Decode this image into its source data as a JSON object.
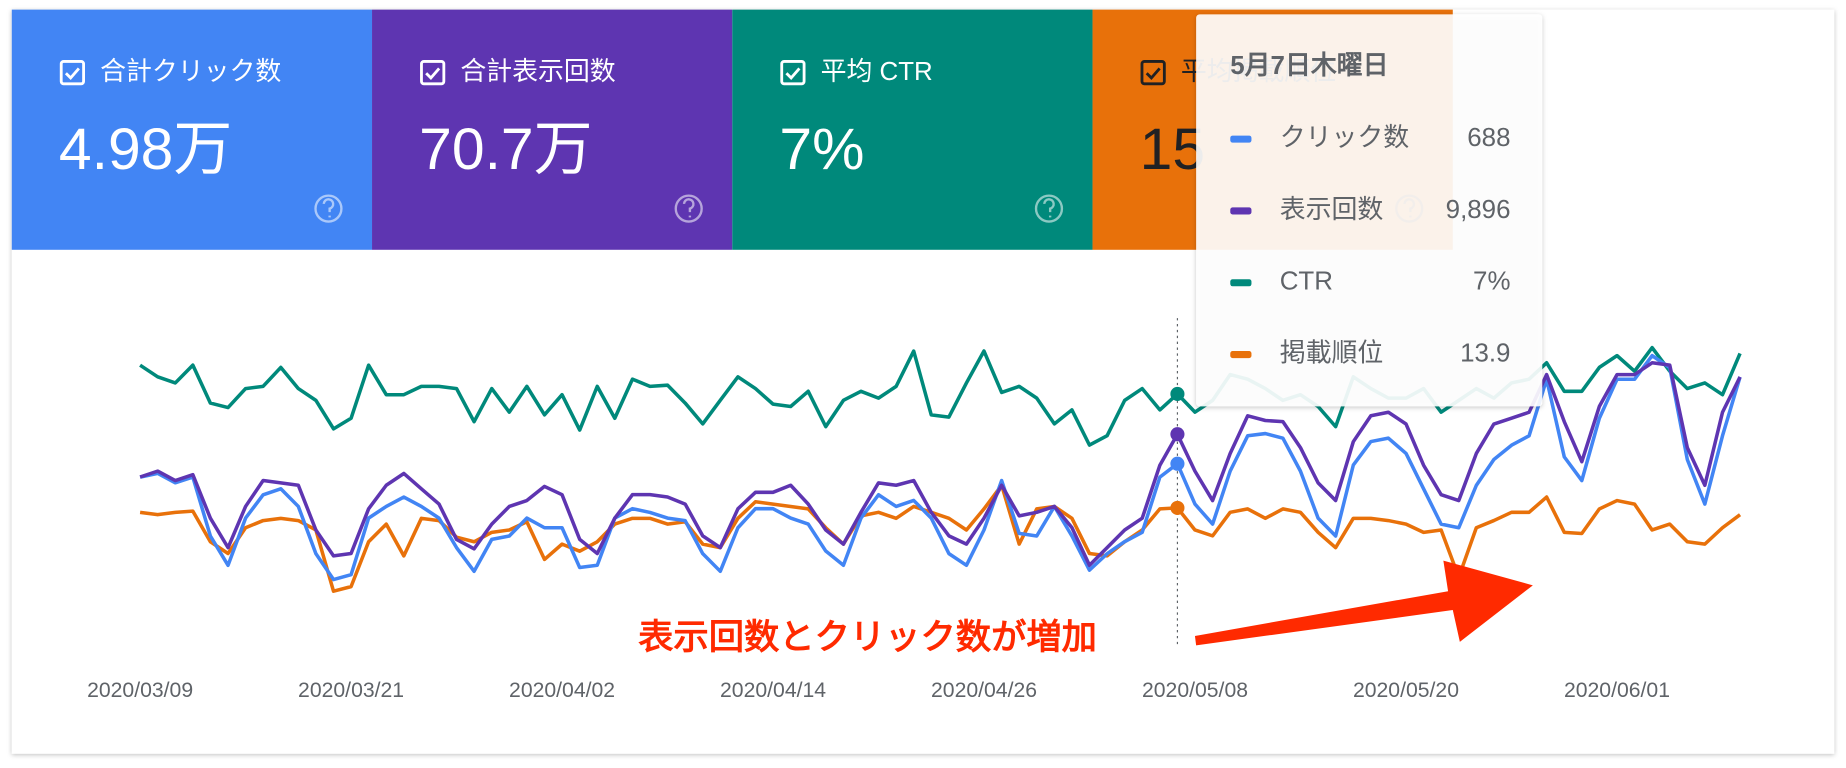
{
  "cards": [
    {
      "label": "合計クリック数",
      "value": "4.98万",
      "color": "#4285f4"
    },
    {
      "label": "合計表示回数",
      "value": "70.7万",
      "color": "#5e35b1"
    },
    {
      "label": "平均 CTR",
      "value": "7%",
      "color": "#00897b"
    },
    {
      "label": "平均掲載順位",
      "value": "15",
      "color": "#e8710a"
    }
  ],
  "chart_data": {
    "type": "line",
    "x": [
      "2020/03/09",
      "2020/03/10",
      "2020/03/11",
      "2020/03/12",
      "2020/03/13",
      "2020/03/14",
      "2020/03/15",
      "2020/03/16",
      "2020/03/17",
      "2020/03/18",
      "2020/03/19",
      "2020/03/20",
      "2020/03/21",
      "2020/03/22",
      "2020/03/23",
      "2020/03/24",
      "2020/03/25",
      "2020/03/26",
      "2020/03/27",
      "2020/03/28",
      "2020/03/29",
      "2020/03/30",
      "2020/03/31",
      "2020/04/01",
      "2020/04/02",
      "2020/04/03",
      "2020/04/04",
      "2020/04/05",
      "2020/04/06",
      "2020/04/07",
      "2020/04/08",
      "2020/04/09",
      "2020/04/10",
      "2020/04/11",
      "2020/04/12",
      "2020/04/13",
      "2020/04/14",
      "2020/04/15",
      "2020/04/16",
      "2020/04/17",
      "2020/04/18",
      "2020/04/19",
      "2020/04/20",
      "2020/04/21",
      "2020/04/22",
      "2020/04/23",
      "2020/04/24",
      "2020/04/25",
      "2020/04/26",
      "2020/04/27",
      "2020/04/28",
      "2020/04/29",
      "2020/04/30",
      "2020/05/01",
      "2020/05/02",
      "2020/05/03",
      "2020/05/04",
      "2020/05/05",
      "2020/05/06",
      "2020/05/07",
      "2020/05/08",
      "2020/05/09",
      "2020/05/10",
      "2020/05/11",
      "2020/05/12",
      "2020/05/13",
      "2020/05/14",
      "2020/05/15",
      "2020/05/16",
      "2020/05/17",
      "2020/05/18",
      "2020/05/19",
      "2020/05/20",
      "2020/05/21",
      "2020/05/22",
      "2020/05/23",
      "2020/05/24",
      "2020/05/25",
      "2020/05/26",
      "2020/05/27",
      "2020/05/28",
      "2020/05/29",
      "2020/05/30",
      "2020/05/31",
      "2020/06/01",
      "2020/06/02",
      "2020/06/03",
      "2020/06/04",
      "2020/06/05",
      "2020/06/06",
      "2020/06/07",
      "2020/06/08"
    ],
    "xticks": [
      "2020/03/09",
      "2020/03/21",
      "2020/04/02",
      "2020/04/14",
      "2020/04/26",
      "2020/05/08",
      "2020/05/20",
      "2020/06/01"
    ],
    "series": [
      {
        "name": "クリック数",
        "color": "#4285f4",
        "ylim": [
          0,
          1200
        ],
        "values": [
          641,
          654,
          621,
          641,
          434,
          331,
          497,
          579,
          600,
          538,
          372,
          281,
          298,
          497,
          538,
          571,
          538,
          497,
          393,
          310,
          422,
          434,
          497,
          463,
          463,
          323,
          331,
          497,
          530,
          517,
          497,
          488,
          372,
          310,
          463,
          530,
          530,
          497,
          476,
          381,
          331,
          497,
          579,
          538,
          559,
          497,
          372,
          331,
          455,
          629,
          443,
          434,
          538,
          434,
          314,
          372,
          414,
          447,
          641,
          688,
          546,
          476,
          662,
          786,
          794,
          778,
          662,
          497,
          434,
          683,
          766,
          778,
          724,
          600,
          476,
          463,
          612,
          703,
          753,
          786,
          985,
          712,
          629,
          848,
          985,
          985,
          1068,
          1026,
          703,
          546,
          786,
          993
        ]
      },
      {
        "name": "表示回数",
        "color": "#5e35b1",
        "ylim": [
          0,
          15000
        ],
        "values": [
          8017,
          8276,
          7862,
          8121,
          6207,
          4914,
          6724,
          7862,
          7759,
          7655,
          5690,
          4552,
          4655,
          6621,
          7655,
          8172,
          7500,
          6828,
          5276,
          4862,
          5948,
          6724,
          6983,
          7603,
          7241,
          5276,
          4655,
          6207,
          7241,
          7241,
          7138,
          6828,
          5431,
          4914,
          6621,
          7345,
          7345,
          7655,
          6828,
          5690,
          5069,
          6466,
          7759,
          7655,
          7862,
          6466,
          5431,
          5069,
          6207,
          7655,
          6310,
          6466,
          6724,
          5793,
          4138,
          4914,
          5690,
          6207,
          8534,
          9896,
          8276,
          6983,
          9052,
          10707,
          10500,
          10448,
          9310,
          7759,
          6983,
          9569,
          10707,
          10862,
          10345,
          8534,
          7241,
          6983,
          9052,
          10345,
          10603,
          10862,
          12517,
          10448,
          8690,
          11121,
          12517,
          12517,
          13034,
          12931,
          9310,
          7655,
          10862,
          12414
        ]
      },
      {
        "name": "CTR",
        "color": "#00897b",
        "ylim": [
          0,
          9
        ],
        "values": [
          7.76,
          7.45,
          7.29,
          7.76,
          6.76,
          6.64,
          7.14,
          7.2,
          7.7,
          7.14,
          6.83,
          6.08,
          6.36,
          7.76,
          6.98,
          6.98,
          7.2,
          7.2,
          7.14,
          6.27,
          7.14,
          6.52,
          7.2,
          6.45,
          6.98,
          6.05,
          7.2,
          6.36,
          7.39,
          7.2,
          7.23,
          6.76,
          6.21,
          6.83,
          7.45,
          7.14,
          6.73,
          6.67,
          7.07,
          6.14,
          6.83,
          7.07,
          6.89,
          7.2,
          8.13,
          6.45,
          6.39,
          7.29,
          8.13,
          7.04,
          7.2,
          6.89,
          6.21,
          6.58,
          5.65,
          5.9,
          6.83,
          7.14,
          6.58,
          7,
          6.52,
          6.83,
          7.51,
          7.39,
          7.14,
          6.83,
          6.98,
          6.67,
          6.14,
          7.45,
          7.14,
          6.89,
          6.89,
          7.14,
          6.52,
          6.83,
          7.14,
          6.89,
          7.29,
          7.39,
          7.82,
          7.07,
          7.07,
          7.7,
          8.01,
          7.6,
          8.22,
          7.6,
          7.14,
          7.29,
          6.98,
          8.07
        ]
      },
      {
        "name": "掲載順位",
        "color": "#e8710a",
        "ylim": [
          25,
          0
        ],
        "values": [
          14.22,
          14.4,
          14.22,
          14.14,
          16.38,
          17.24,
          15.35,
          14.83,
          14.66,
          14.83,
          15.52,
          20,
          19.66,
          16.38,
          15.09,
          17.41,
          14.66,
          14.83,
          16.04,
          16.38,
          15.69,
          15.52,
          14.91,
          17.67,
          16.55,
          17.07,
          16.38,
          15.09,
          14.66,
          14.66,
          15.09,
          14.91,
          16.55,
          16.81,
          14.66,
          13.45,
          13.62,
          13.79,
          13.97,
          15.35,
          16.55,
          14.48,
          14.22,
          14.66,
          13.79,
          14.22,
          14.66,
          15.52,
          13.97,
          12.24,
          16.55,
          13.97,
          13.79,
          14.66,
          17.24,
          17.41,
          16.38,
          15.52,
          13.97,
          13.9,
          15.52,
          15.95,
          14.22,
          13.97,
          14.66,
          13.97,
          14.22,
          15.69,
          16.81,
          14.66,
          14.66,
          14.83,
          15.09,
          15.69,
          15.52,
          18.97,
          15.35,
          14.83,
          14.22,
          14.22,
          13.1,
          15.69,
          15.78,
          13.97,
          13.36,
          13.62,
          15.52,
          15.09,
          16.38,
          16.55,
          15.35,
          14.4
        ]
      }
    ],
    "annotation": "表示回数とクリック数が増加",
    "tooltip": {
      "x": "2020/05/07",
      "title": "5月7日木曜日",
      "labels": [
        "688",
        "9,896",
        "7%",
        "13.9"
      ]
    }
  }
}
